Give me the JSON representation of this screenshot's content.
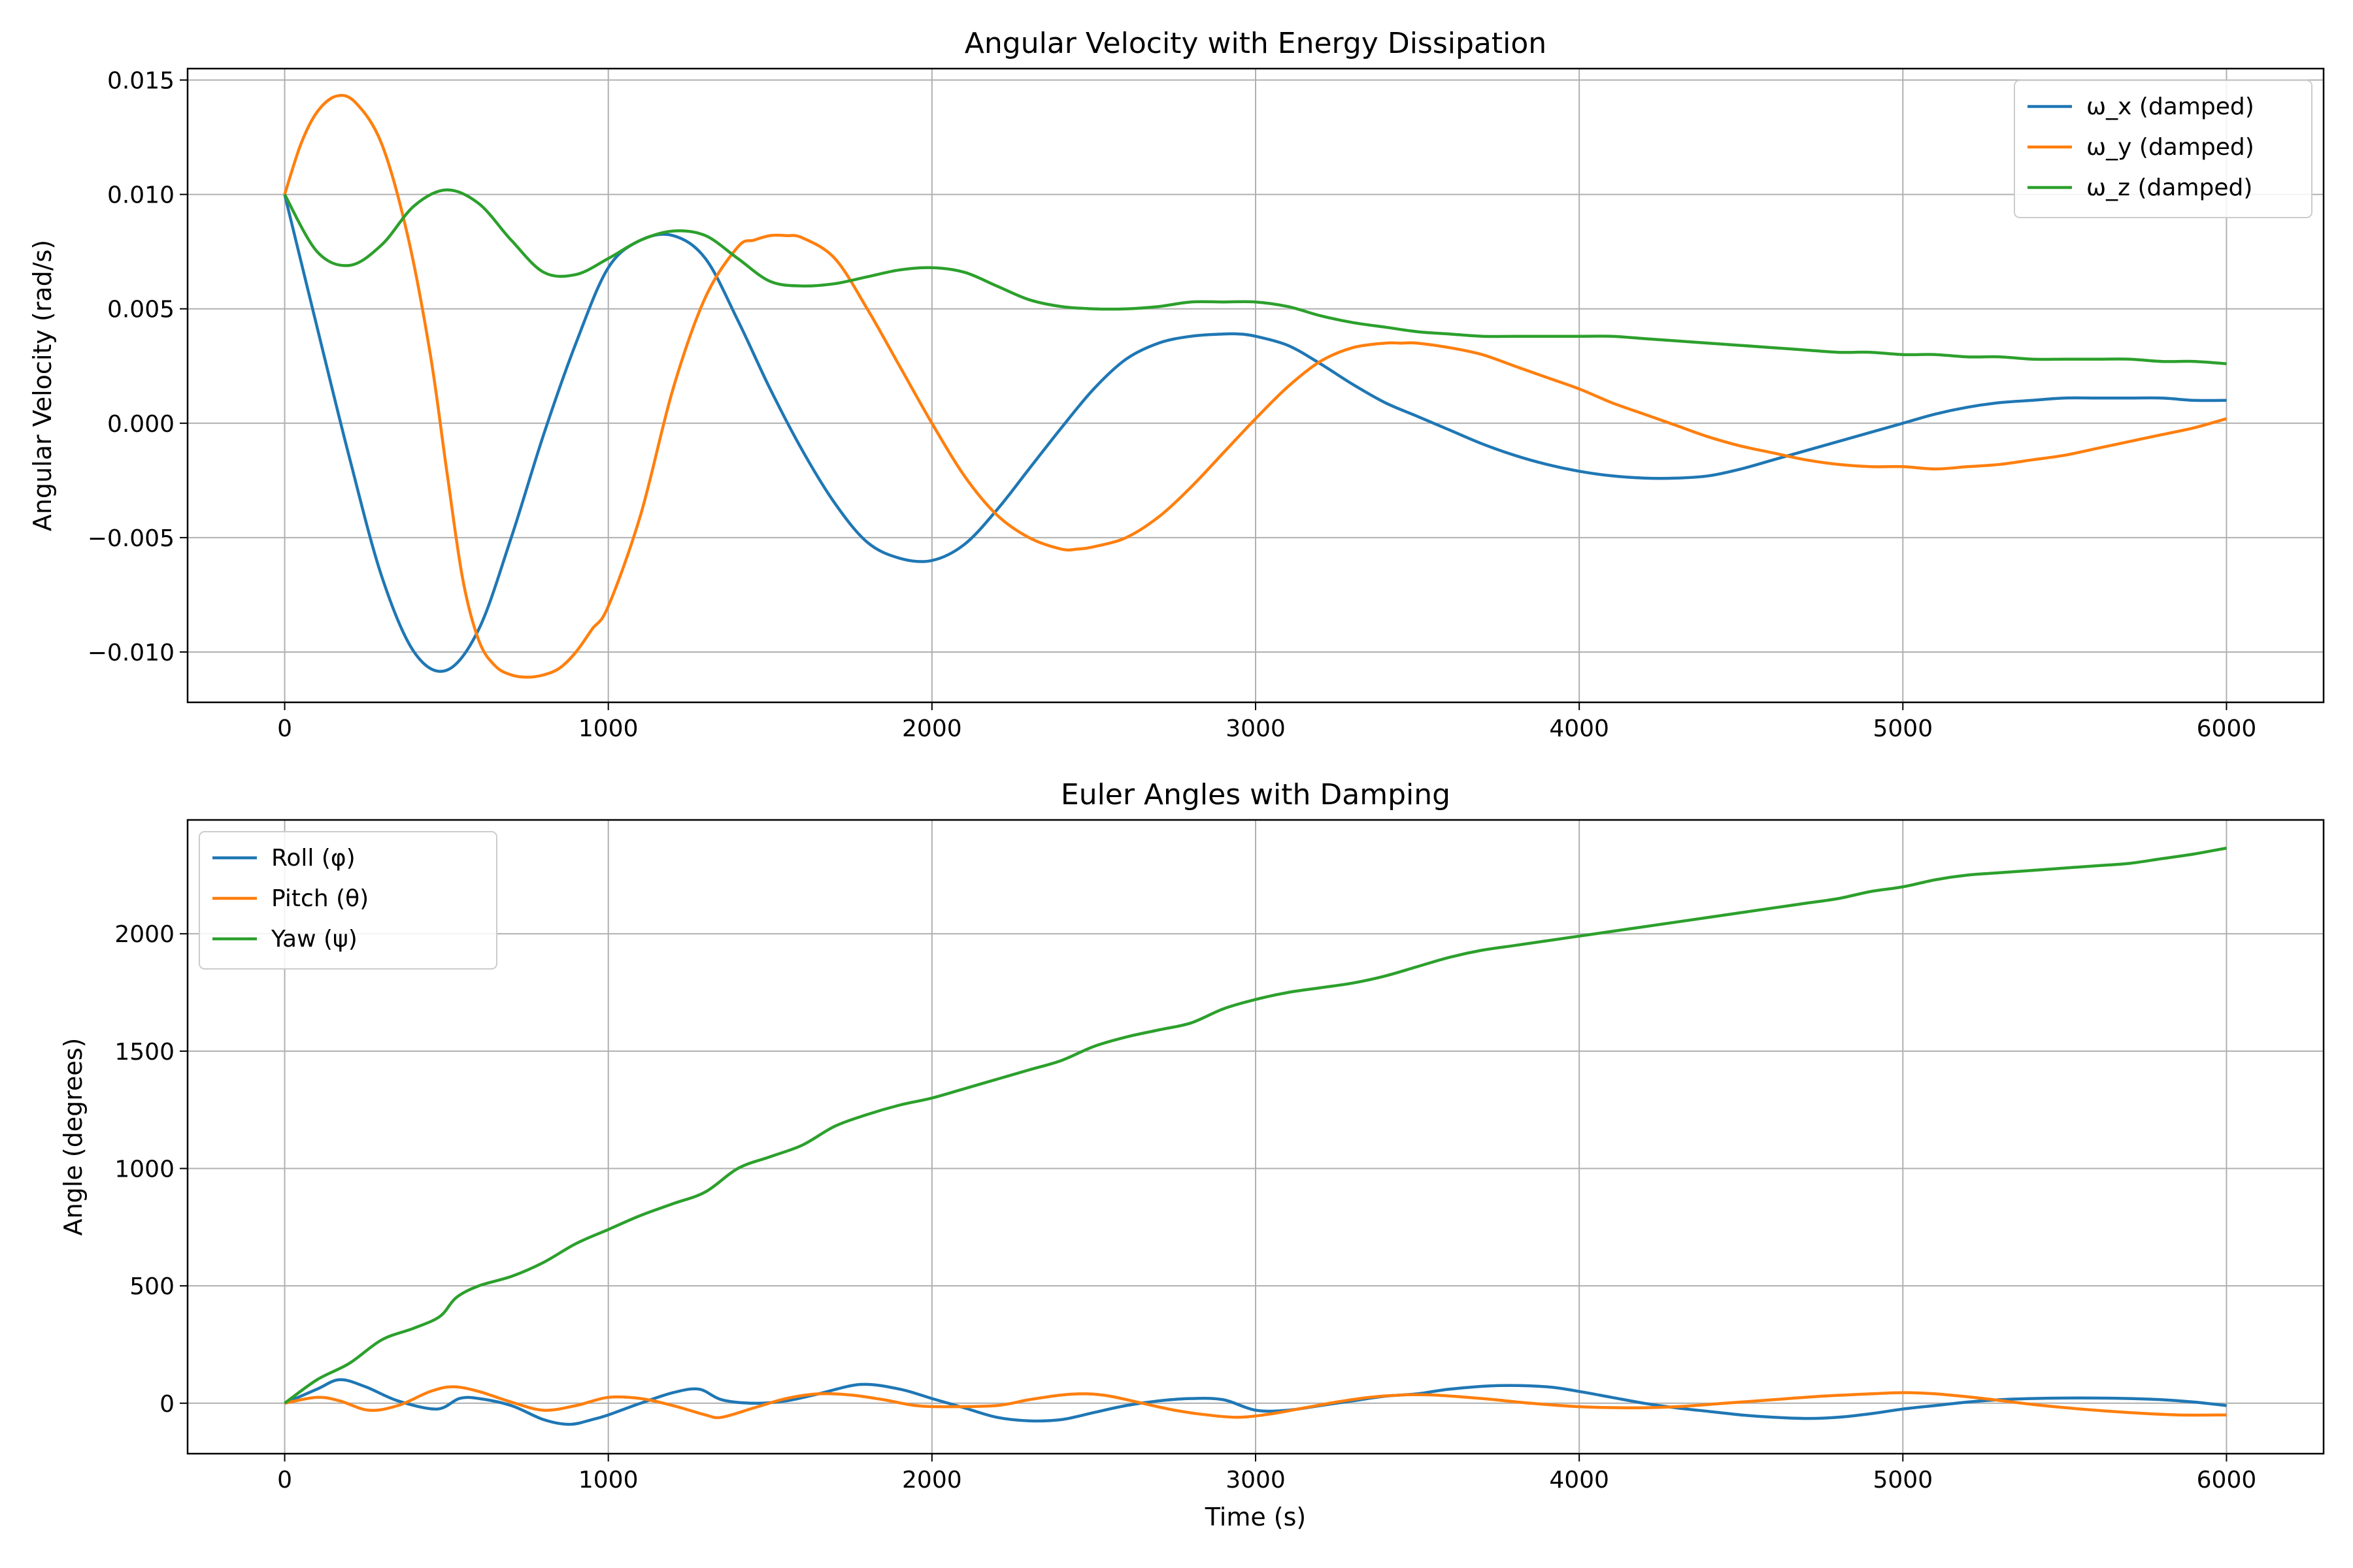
{
  "chart_data": [
    {
      "type": "line",
      "title": "Angular Velocity with Energy Dissipation",
      "xlabel": "",
      "ylabel": "Angular Velocity (rad/s)",
      "xlim": [
        -300,
        6300
      ],
      "ylim": [
        -0.0122,
        0.0155
      ],
      "xticks": [
        0,
        1000,
        2000,
        3000,
        4000,
        5000,
        6000
      ],
      "xtick_labels": [
        "0",
        "1000",
        "2000",
        "3000",
        "4000",
        "5000",
        "6000"
      ],
      "yticks": [
        -0.01,
        -0.005,
        0.0,
        0.005,
        0.01,
        0.015
      ],
      "ytick_labels": [
        "−0.010",
        "−0.005",
        "0.000",
        "0.005",
        "0.010",
        "0.015"
      ],
      "grid": true,
      "legend_position": "top-right",
      "series": [
        {
          "name": "ω_x (damped)",
          "color": "#1f77b4",
          "x": [
            0,
            100,
            200,
            300,
            400,
            500,
            600,
            700,
            800,
            900,
            1000,
            1100,
            1200,
            1300,
            1400,
            1500,
            1600,
            1700,
            1800,
            1900,
            2000,
            2100,
            2200,
            2300,
            2400,
            2500,
            2600,
            2700,
            2800,
            2900,
            2950,
            3000,
            3100,
            3200,
            3300,
            3400,
            3500,
            3600,
            3700,
            3800,
            3900,
            4000,
            4100,
            4200,
            4300,
            4400,
            4500,
            4600,
            4700,
            4800,
            4900,
            5000,
            5100,
            5200,
            5300,
            5400,
            5500,
            5600,
            5700,
            5800,
            5900,
            6000
          ],
          "y": [
            0.01,
            0.0042,
            -0.0015,
            -0.0067,
            -0.01,
            -0.0108,
            -0.009,
            -0.005,
            -0.0005,
            0.0035,
            0.0068,
            0.008,
            0.0082,
            0.0072,
            0.0045,
            0.0015,
            -0.0012,
            -0.0035,
            -0.0052,
            -0.0059,
            -0.006,
            -0.0053,
            -0.0038,
            -0.002,
            -0.0002,
            0.0015,
            0.0028,
            0.0035,
            0.0038,
            0.0039,
            0.0039,
            0.0038,
            0.0034,
            0.0026,
            0.0017,
            0.0009,
            0.0003,
            -0.0003,
            -0.0009,
            -0.0014,
            -0.0018,
            -0.0021,
            -0.0023,
            -0.0024,
            -0.0024,
            -0.0023,
            -0.002,
            -0.0016,
            -0.0012,
            -0.0008,
            -0.0004,
            0.0,
            0.0004,
            0.0007,
            0.0009,
            0.001,
            0.0011,
            0.0011,
            0.0011,
            0.0011,
            0.001,
            0.001
          ]
        },
        {
          "name": "ω_y (damped)",
          "color": "#ff7f0e",
          "x": [
            0,
            50,
            100,
            160,
            220,
            300,
            380,
            450,
            500,
            550,
            600,
            650,
            700,
            750,
            800,
            850,
            900,
            950,
            1000,
            1100,
            1200,
            1300,
            1400,
            1450,
            1500,
            1550,
            1600,
            1700,
            1800,
            1900,
            2000,
            2100,
            2200,
            2300,
            2400,
            2450,
            2500,
            2600,
            2700,
            2800,
            2900,
            3000,
            3100,
            3200,
            3300,
            3400,
            3450,
            3500,
            3600,
            3700,
            3800,
            3900,
            4000,
            4100,
            4200,
            4300,
            4400,
            4500,
            4600,
            4700,
            4800,
            4900,
            5000,
            5100,
            5200,
            5300,
            5400,
            5500,
            5600,
            5700,
            5800,
            5900,
            6000
          ],
          "y": [
            0.01,
            0.0122,
            0.0136,
            0.0143,
            0.014,
            0.0122,
            0.0082,
            0.003,
            -0.002,
            -0.0068,
            -0.0095,
            -0.0106,
            -0.011,
            -0.0111,
            -0.011,
            -0.0107,
            -0.01,
            -0.009,
            -0.008,
            -0.004,
            0.0015,
            0.0055,
            0.0077,
            0.008,
            0.0082,
            0.0082,
            0.0081,
            0.0072,
            0.005,
            0.0025,
            0.0,
            -0.0023,
            -0.004,
            -0.005,
            -0.0055,
            -0.0055,
            -0.0054,
            -0.005,
            -0.0041,
            -0.0028,
            -0.0013,
            0.0002,
            0.0016,
            0.0027,
            0.0033,
            0.0035,
            0.0035,
            0.0035,
            0.0033,
            0.003,
            0.0025,
            0.002,
            0.0015,
            0.0009,
            0.0004,
            -0.0001,
            -0.0006,
            -0.001,
            -0.0013,
            -0.0016,
            -0.0018,
            -0.0019,
            -0.0019,
            -0.002,
            -0.0019,
            -0.0018,
            -0.0016,
            -0.0014,
            -0.0011,
            -0.0008,
            -0.0005,
            -0.0002,
            0.0002
          ]
        },
        {
          "name": "ω_z (damped)",
          "color": "#2ca02c",
          "x": [
            0,
            100,
            200,
            300,
            400,
            500,
            600,
            700,
            800,
            900,
            1000,
            1100,
            1200,
            1300,
            1400,
            1500,
            1600,
            1700,
            1800,
            1900,
            2000,
            2100,
            2200,
            2300,
            2400,
            2500,
            2600,
            2700,
            2800,
            2900,
            3000,
            3100,
            3200,
            3300,
            3400,
            3500,
            3600,
            3700,
            3800,
            3900,
            4000,
            4100,
            4200,
            4300,
            4400,
            4500,
            4600,
            4700,
            4800,
            4900,
            5000,
            5100,
            5200,
            5300,
            5400,
            5500,
            5600,
            5700,
            5800,
            5900,
            6000
          ],
          "y": [
            0.01,
            0.0075,
            0.0069,
            0.0078,
            0.0095,
            0.0102,
            0.0096,
            0.008,
            0.0066,
            0.0065,
            0.0072,
            0.008,
            0.0084,
            0.0082,
            0.0072,
            0.0062,
            0.006,
            0.0061,
            0.0064,
            0.0067,
            0.0068,
            0.0066,
            0.006,
            0.0054,
            0.0051,
            0.005,
            0.005,
            0.0051,
            0.0053,
            0.0053,
            0.0053,
            0.0051,
            0.0047,
            0.0044,
            0.0042,
            0.004,
            0.0039,
            0.0038,
            0.0038,
            0.0038,
            0.0038,
            0.0038,
            0.0037,
            0.0036,
            0.0035,
            0.0034,
            0.0033,
            0.0032,
            0.0031,
            0.0031,
            0.003,
            0.003,
            0.0029,
            0.0029,
            0.0028,
            0.0028,
            0.0028,
            0.0028,
            0.0027,
            0.0027,
            0.0026
          ]
        }
      ]
    },
    {
      "type": "line",
      "title": "Euler Angles with Damping",
      "xlabel": "Time (s)",
      "ylabel": "Angle (degrees)",
      "xlim": [
        -300,
        6300
      ],
      "ylim": [
        -215,
        2485
      ],
      "xticks": [
        0,
        1000,
        2000,
        3000,
        4000,
        5000,
        6000
      ],
      "xtick_labels": [
        "0",
        "1000",
        "2000",
        "3000",
        "4000",
        "5000",
        "6000"
      ],
      "yticks": [
        0,
        500,
        1000,
        1500,
        2000
      ],
      "ytick_labels": [
        "0",
        "500",
        "1000",
        "1500",
        "2000"
      ],
      "grid": true,
      "legend_position": "top-left",
      "series": [
        {
          "name": "Roll (φ)",
          "color": "#1f77b4",
          "x": [
            0,
            100,
            170,
            250,
            350,
            470,
            540,
            600,
            700,
            800,
            880,
            950,
            1000,
            1100,
            1200,
            1280,
            1350,
            1450,
            1550,
            1650,
            1780,
            1900,
            2000,
            2100,
            2200,
            2300,
            2400,
            2500,
            2600,
            2700,
            2800,
            2900,
            3000,
            3100,
            3200,
            3300,
            3400,
            3500,
            3600,
            3750,
            3900,
            4000,
            4100,
            4200,
            4300,
            4400,
            4500,
            4600,
            4700,
            4800,
            4900,
            5000,
            5100,
            5200,
            5300,
            5400,
            5500,
            5600,
            5700,
            5800,
            5900,
            6000
          ],
          "y": [
            0,
            60,
            100,
            70,
            10,
            -25,
            20,
            20,
            -10,
            -70,
            -90,
            -70,
            -50,
            0,
            45,
            60,
            15,
            0,
            10,
            40,
            80,
            60,
            20,
            -20,
            -60,
            -75,
            -70,
            -40,
            -10,
            10,
            20,
            15,
            -30,
            -30,
            -10,
            10,
            30,
            40,
            60,
            75,
            70,
            50,
            25,
            0,
            -20,
            -35,
            -50,
            -60,
            -65,
            -60,
            -45,
            -25,
            -10,
            5,
            15,
            20,
            22,
            22,
            20,
            15,
            5,
            -10
          ]
        },
        {
          "name": "Pitch (θ)",
          "color": "#ff7f0e",
          "x": [
            0,
            100,
            170,
            260,
            350,
            450,
            520,
            600,
            700,
            800,
            900,
            1000,
            1100,
            1200,
            1300,
            1350,
            1450,
            1550,
            1650,
            1750,
            1850,
            1950,
            2050,
            2200,
            2300,
            2400,
            2480,
            2550,
            2650,
            2750,
            2850,
            2950,
            3050,
            3150,
            3250,
            3350,
            3450,
            3550,
            3700,
            3850,
            4000,
            4150,
            4300,
            4450,
            4600,
            4750,
            4900,
            5000,
            5100,
            5250,
            5400,
            5550,
            5700,
            5850,
            6000
          ],
          "y": [
            0,
            25,
            10,
            -30,
            -10,
            50,
            70,
            50,
            5,
            -30,
            -10,
            25,
            20,
            -10,
            -50,
            -60,
            -20,
            20,
            40,
            35,
            15,
            -10,
            -15,
            -10,
            15,
            35,
            40,
            30,
            0,
            -30,
            -50,
            -60,
            -45,
            -20,
            5,
            25,
            35,
            35,
            20,
            0,
            -15,
            -20,
            -15,
            0,
            15,
            30,
            40,
            45,
            40,
            20,
            -5,
            -25,
            -40,
            -50,
            -50
          ]
        },
        {
          "name": "Yaw (ψ)",
          "color": "#2ca02c",
          "x": [
            0,
            100,
            200,
            300,
            400,
            480,
            530,
            600,
            700,
            800,
            900,
            1000,
            1100,
            1200,
            1300,
            1400,
            1500,
            1600,
            1700,
            1800,
            1900,
            2000,
            2100,
            2200,
            2300,
            2400,
            2500,
            2600,
            2700,
            2800,
            2900,
            3000,
            3100,
            3200,
            3300,
            3400,
            3500,
            3600,
            3700,
            3800,
            3900,
            4000,
            4100,
            4200,
            4300,
            4400,
            4500,
            4600,
            4700,
            4800,
            4900,
            5000,
            5100,
            5200,
            5300,
            5400,
            5500,
            5600,
            5700,
            5800,
            5900,
            6000
          ],
          "y": [
            0,
            100,
            170,
            270,
            320,
            370,
            450,
            500,
            540,
            600,
            680,
            740,
            800,
            850,
            900,
            1000,
            1050,
            1100,
            1180,
            1230,
            1270,
            1300,
            1340,
            1380,
            1420,
            1460,
            1520,
            1560,
            1590,
            1620,
            1680,
            1720,
            1750,
            1770,
            1790,
            1820,
            1860,
            1900,
            1930,
            1950,
            1970,
            1990,
            2010,
            2030,
            2050,
            2070,
            2090,
            2110,
            2130,
            2150,
            2180,
            2200,
            2230,
            2250,
            2260,
            2270,
            2280,
            2290,
            2300,
            2320,
            2340,
            2365
          ]
        }
      ]
    }
  ]
}
